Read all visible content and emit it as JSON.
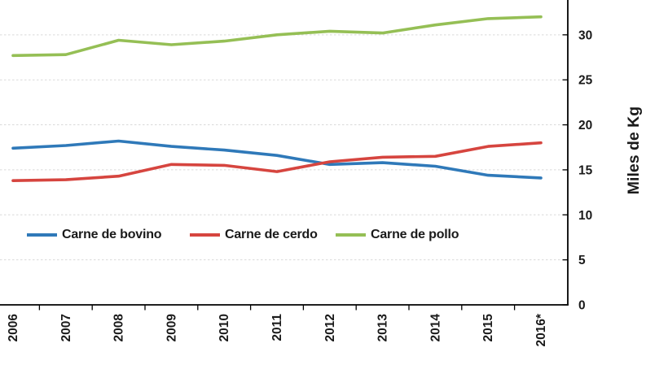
{
  "chart_data": {
    "type": "line",
    "title": "",
    "categories": [
      "2006",
      "2007",
      "2008",
      "2009",
      "2010",
      "2011",
      "2012",
      "2013",
      "2014",
      "2015",
      "2016*"
    ],
    "series": [
      {
        "name": "Carne de bovino",
        "color": "#2F79B9",
        "values": [
          17.4,
          17.7,
          18.2,
          17.6,
          17.2,
          16.6,
          15.6,
          15.8,
          15.4,
          14.4,
          14.1
        ]
      },
      {
        "name": "Carne de cerdo",
        "color": "#D6453F",
        "values": [
          13.8,
          13.9,
          14.3,
          15.6,
          15.5,
          14.8,
          15.9,
          16.4,
          16.5,
          17.6,
          18.0
        ]
      },
      {
        "name": "Carne de pollo",
        "color": "#95BF55",
        "values": [
          27.7,
          27.8,
          29.4,
          28.9,
          29.3,
          30.0,
          30.4,
          30.2,
          31.1,
          31.8,
          32.0
        ]
      }
    ],
    "xlabel": "",
    "ylabel": "Miles de Kg",
    "ylim": [
      0,
      33.9
    ],
    "yticks": [
      0,
      5,
      10,
      15,
      20,
      25,
      30
    ],
    "y_axis_side": "right",
    "x_label_rotation": -90,
    "grid": "horizontal-dashed",
    "legend_position": "inside-bottom-left"
  },
  "styles": {
    "grid_color": "#D9D9D9",
    "axis_color": "#000000",
    "text_color": "#1A1A1A",
    "background": "#FFFFFF"
  }
}
